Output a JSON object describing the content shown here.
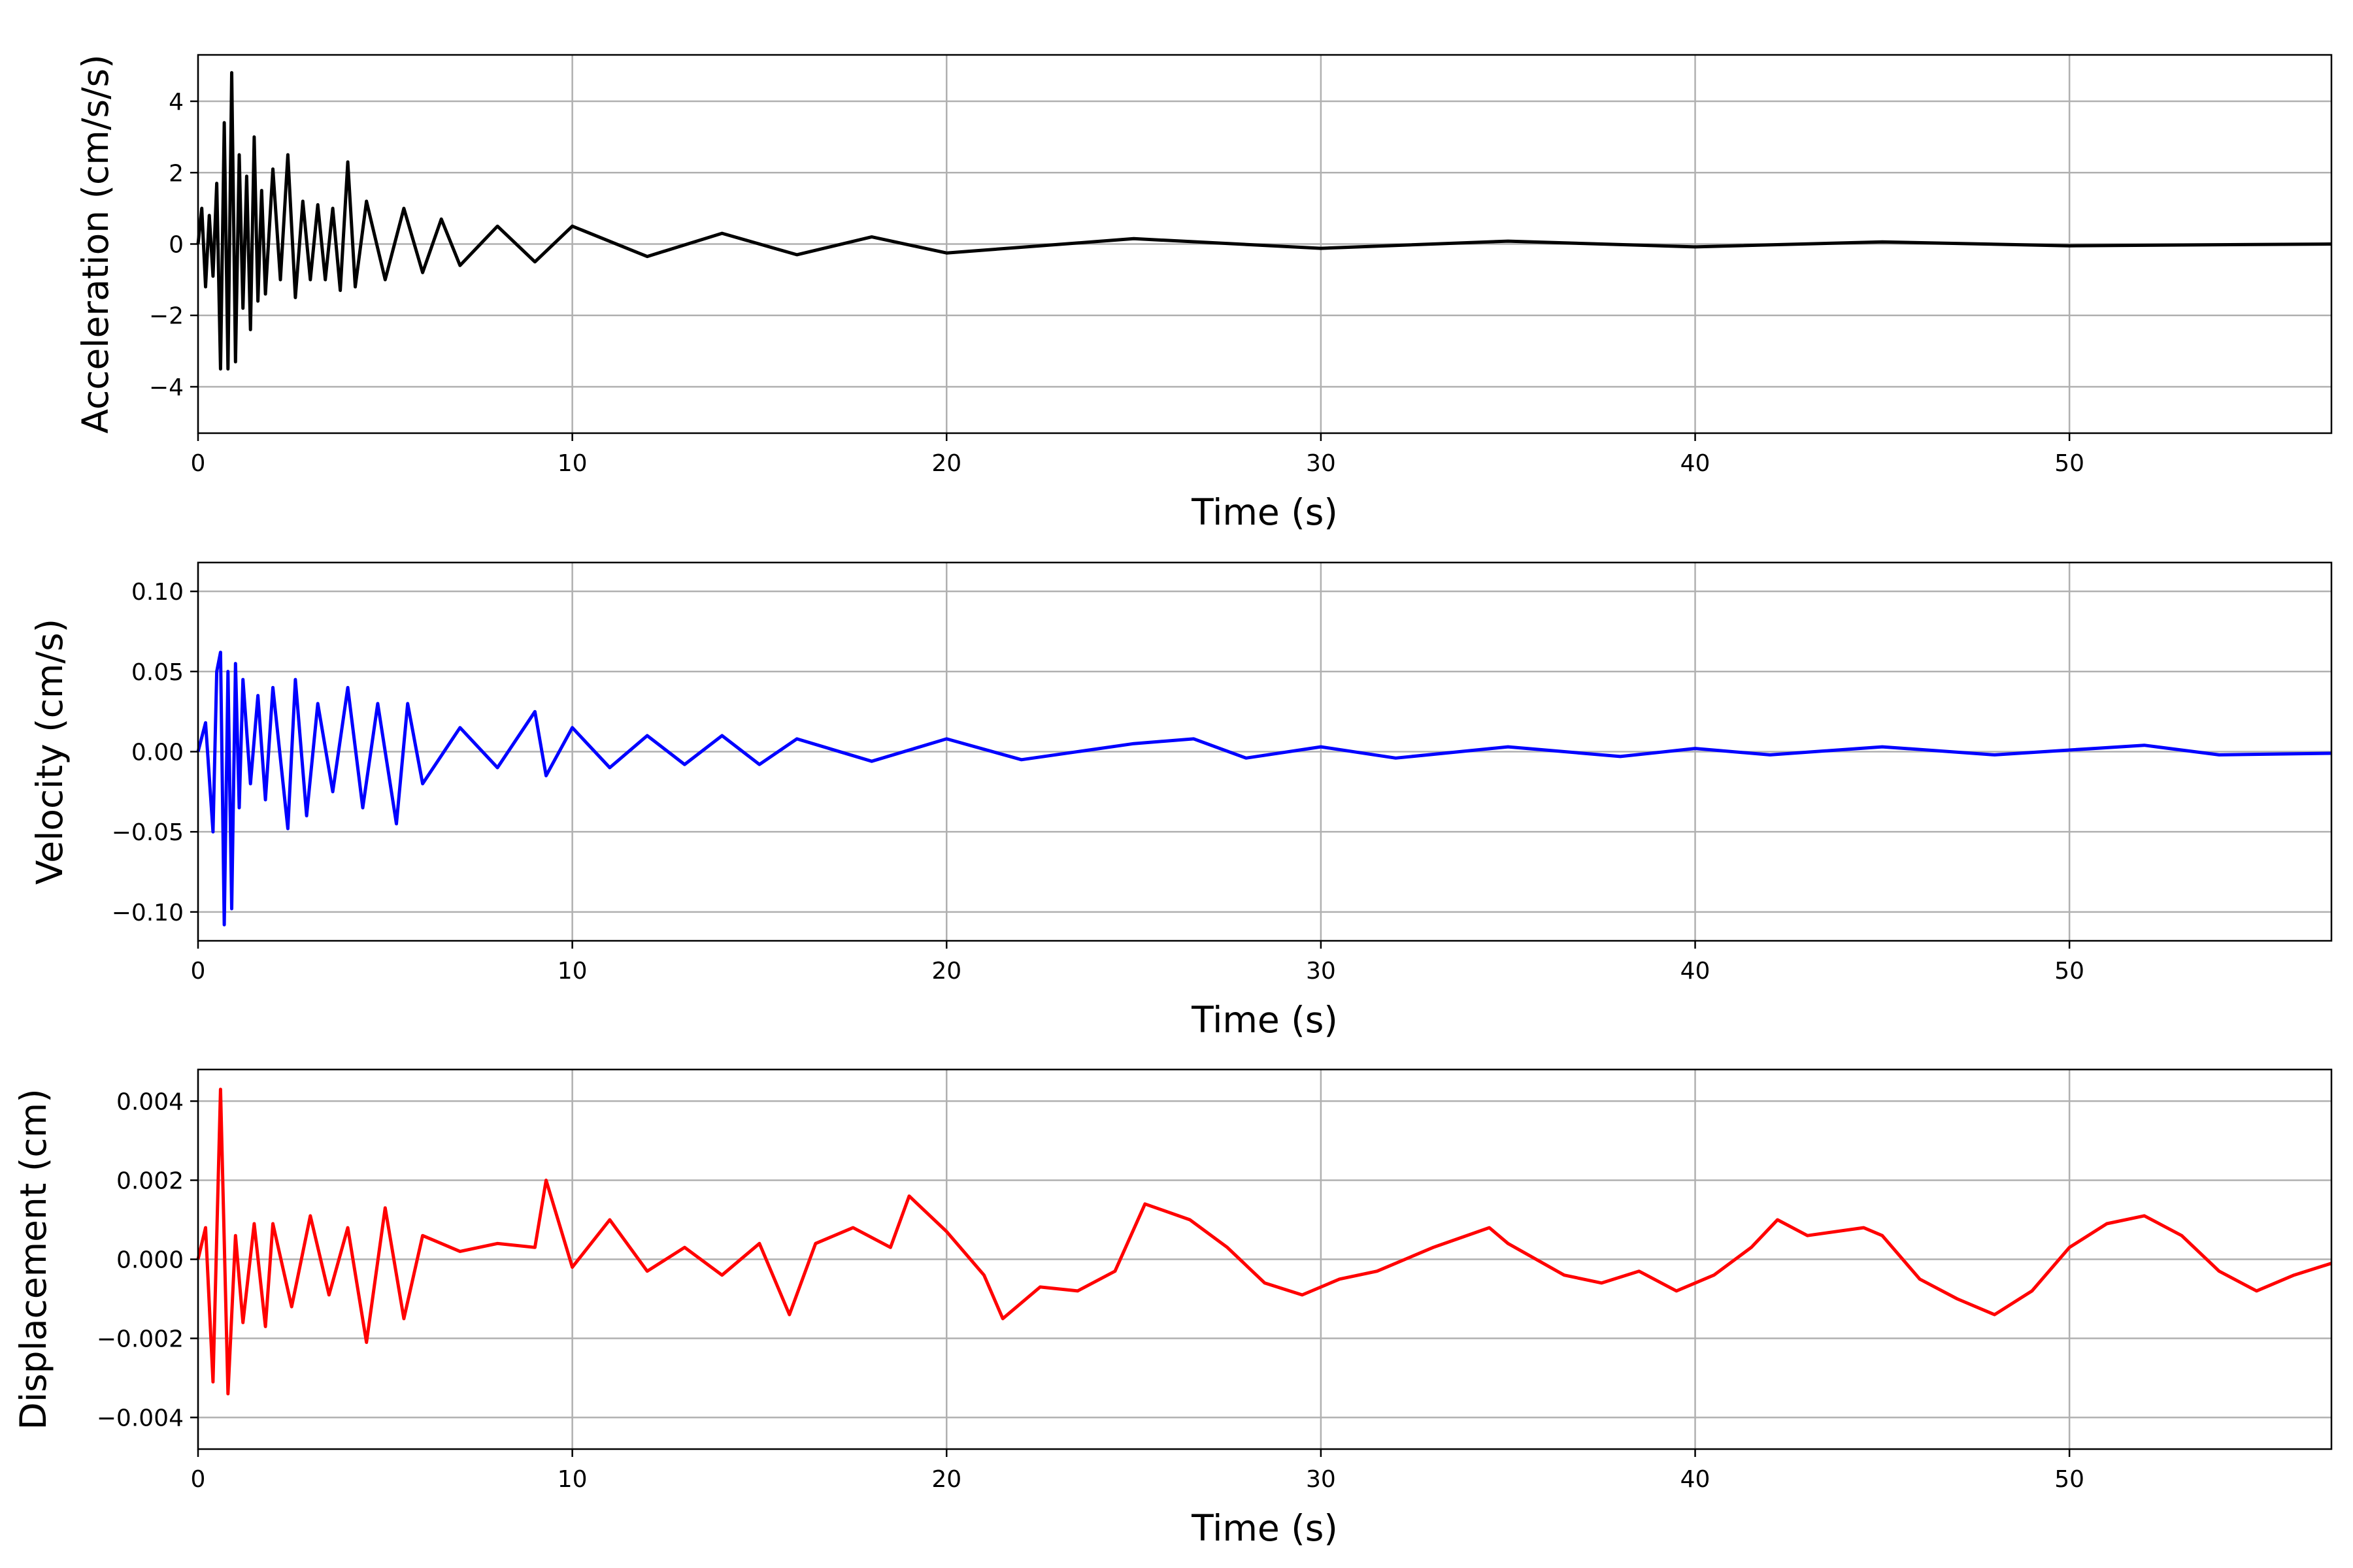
{
  "chart_data": [
    {
      "type": "line",
      "title": "",
      "xlabel": "Time (s)",
      "ylabel": "Acceleration (cm/s/s)",
      "xlim": [
        0,
        57
      ],
      "ylim": [
        -5.3,
        5.3
      ],
      "x_ticks": [
        0,
        10,
        20,
        30,
        40,
        50
      ],
      "y_ticks": [
        -4,
        -2,
        0,
        2,
        4
      ],
      "y_tick_labels": [
        "−4",
        "−2",
        "0",
        "2",
        "4"
      ],
      "grid": true,
      "legend": "none",
      "color": "#000000",
      "series": [
        {
          "x": [
            0,
            0.1,
            0.2,
            0.3,
            0.4,
            0.5,
            0.6,
            0.7,
            0.8,
            0.9,
            1.0,
            1.1,
            1.2,
            1.3,
            1.4,
            1.5,
            1.6,
            1.7,
            1.8,
            2.0,
            2.2,
            2.4,
            2.6,
            2.8,
            3.0,
            3.2,
            3.4,
            3.6,
            3.8,
            4.0,
            4.2,
            4.5,
            5.0,
            5.5,
            6.0,
            6.5,
            7.0,
            8.0,
            9.0,
            10.0,
            12.0,
            14.0,
            16.0,
            18.0,
            20.0,
            25.0,
            30.0,
            35.0,
            40.0,
            45.0,
            50.0,
            57.0
          ],
          "values": [
            0,
            1.0,
            -1.2,
            0.8,
            -0.9,
            1.7,
            -3.5,
            3.4,
            -3.5,
            4.8,
            -3.3,
            2.5,
            -1.8,
            1.9,
            -2.4,
            3.0,
            -1.6,
            1.5,
            -1.4,
            2.1,
            -1.0,
            2.5,
            -1.5,
            1.2,
            -1.0,
            1.1,
            -1.0,
            1.0,
            -1.3,
            2.3,
            -1.2,
            1.2,
            -1.0,
            1.0,
            -0.8,
            0.7,
            -0.6,
            0.5,
            -0.5,
            0.5,
            -0.35,
            0.3,
            -0.3,
            0.2,
            -0.25,
            0.15,
            -0.12,
            0.08,
            -0.08,
            0.06,
            -0.05,
            0
          ]
        }
      ]
    },
    {
      "type": "line",
      "title": "",
      "xlabel": "Time (s)",
      "ylabel": "Velocity (cm/s)",
      "xlim": [
        0,
        57
      ],
      "ylim": [
        -0.118,
        0.118
      ],
      "x_ticks": [
        0,
        10,
        20,
        30,
        40,
        50
      ],
      "y_ticks": [
        -0.1,
        -0.05,
        0.0,
        0.05,
        0.1
      ],
      "y_tick_labels": [
        "−0.10",
        "−0.05",
        "0.00",
        "0.05",
        "0.10"
      ],
      "grid": true,
      "legend": "none",
      "color": "#0000ff",
      "series": [
        {
          "x": [
            0,
            0.2,
            0.4,
            0.5,
            0.6,
            0.7,
            0.8,
            0.9,
            1.0,
            1.1,
            1.2,
            1.4,
            1.6,
            1.8,
            2.0,
            2.4,
            2.6,
            2.9,
            3.2,
            3.6,
            4.0,
            4.4,
            4.8,
            5.3,
            5.6,
            6.0,
            7.0,
            8.0,
            9.0,
            9.3,
            10.0,
            11.0,
            12.0,
            13.0,
            14.0,
            15.0,
            16.0,
            18.0,
            20.0,
            22.0,
            25.0,
            26.6,
            28.0,
            30.0,
            32.0,
            35.0,
            38.0,
            40.0,
            42.0,
            45.0,
            48.0,
            50.0,
            52.0,
            54.0,
            57.0
          ],
          "values": [
            0,
            0.018,
            -0.05,
            0.05,
            0.062,
            -0.108,
            0.05,
            -0.098,
            0.055,
            -0.035,
            0.045,
            -0.02,
            0.035,
            -0.03,
            0.04,
            -0.048,
            0.045,
            -0.04,
            0.03,
            -0.025,
            0.04,
            -0.035,
            0.03,
            -0.045,
            0.03,
            -0.02,
            0.015,
            -0.01,
            0.025,
            -0.015,
            0.015,
            -0.01,
            0.01,
            -0.008,
            0.01,
            -0.008,
            0.008,
            -0.006,
            0.008,
            -0.005,
            0.005,
            0.008,
            -0.004,
            0.003,
            -0.004,
            0.003,
            -0.003,
            0.002,
            -0.002,
            0.003,
            -0.002,
            0.001,
            0.004,
            -0.002,
            -0.001
          ]
        }
      ]
    },
    {
      "type": "line",
      "title": "",
      "xlabel": "Time (s)",
      "ylabel": "Displacement (cm)",
      "xlim": [
        0,
        57
      ],
      "ylim": [
        -0.0048,
        0.0048
      ],
      "x_ticks": [
        0,
        10,
        20,
        30,
        40,
        50
      ],
      "y_ticks": [
        -0.004,
        -0.002,
        0.0,
        0.002,
        0.004
      ],
      "y_tick_labels": [
        "−0.004",
        "−0.002",
        "0.000",
        "0.002",
        "0.004"
      ],
      "grid": true,
      "legend": "none",
      "color": "#ff0000",
      "series": [
        {
          "x": [
            0,
            0.2,
            0.4,
            0.6,
            0.8,
            1.0,
            1.2,
            1.5,
            1.8,
            2.0,
            2.5,
            3.0,
            3.5,
            4.0,
            4.5,
            5.0,
            5.5,
            6.0,
            7.0,
            8.0,
            9.0,
            9.3,
            10.0,
            11.0,
            12.0,
            13.0,
            14.0,
            15.0,
            15.8,
            16.5,
            17.5,
            18.5,
            19.0,
            20.0,
            21.0,
            21.5,
            22.5,
            23.5,
            24.5,
            25.3,
            26.5,
            27.5,
            28.5,
            29.5,
            30.5,
            31.5,
            33.0,
            34.5,
            35.0,
            36.5,
            37.5,
            38.5,
            39.5,
            40.5,
            41.5,
            42.2,
            43.0,
            44.5,
            45.0,
            46.0,
            47.0,
            48.0,
            49.0,
            50.0,
            51.0,
            52.0,
            53.0,
            54.0,
            55.0,
            56.0,
            57.0
          ],
          "values": [
            0,
            0.0008,
            -0.0031,
            0.0043,
            -0.0034,
            0.0006,
            -0.0016,
            0.0009,
            -0.0017,
            0.0009,
            -0.0012,
            0.0011,
            -0.0009,
            0.0008,
            -0.0021,
            0.0013,
            -0.0015,
            0.0006,
            0.0002,
            0.0004,
            0.0003,
            0.002,
            -0.0002,
            0.001,
            -0.0003,
            0.0003,
            -0.0004,
            0.0004,
            -0.0014,
            0.0004,
            0.0008,
            0.0003,
            0.0016,
            0.0007,
            -0.0004,
            -0.0015,
            -0.0007,
            -0.0008,
            -0.0003,
            0.0014,
            0.001,
            0.0003,
            -0.0006,
            -0.0009,
            -0.0005,
            -0.0003,
            0.0003,
            0.0008,
            0.0004,
            -0.0004,
            -0.0006,
            -0.0003,
            -0.0008,
            -0.0004,
            0.0003,
            0.001,
            0.0006,
            0.0008,
            0.0006,
            -0.0005,
            -0.001,
            -0.0014,
            -0.0008,
            0.0003,
            0.0009,
            0.0011,
            0.0006,
            -0.0003,
            -0.0008,
            -0.0004,
            -0.0001
          ]
        }
      ]
    }
  ]
}
